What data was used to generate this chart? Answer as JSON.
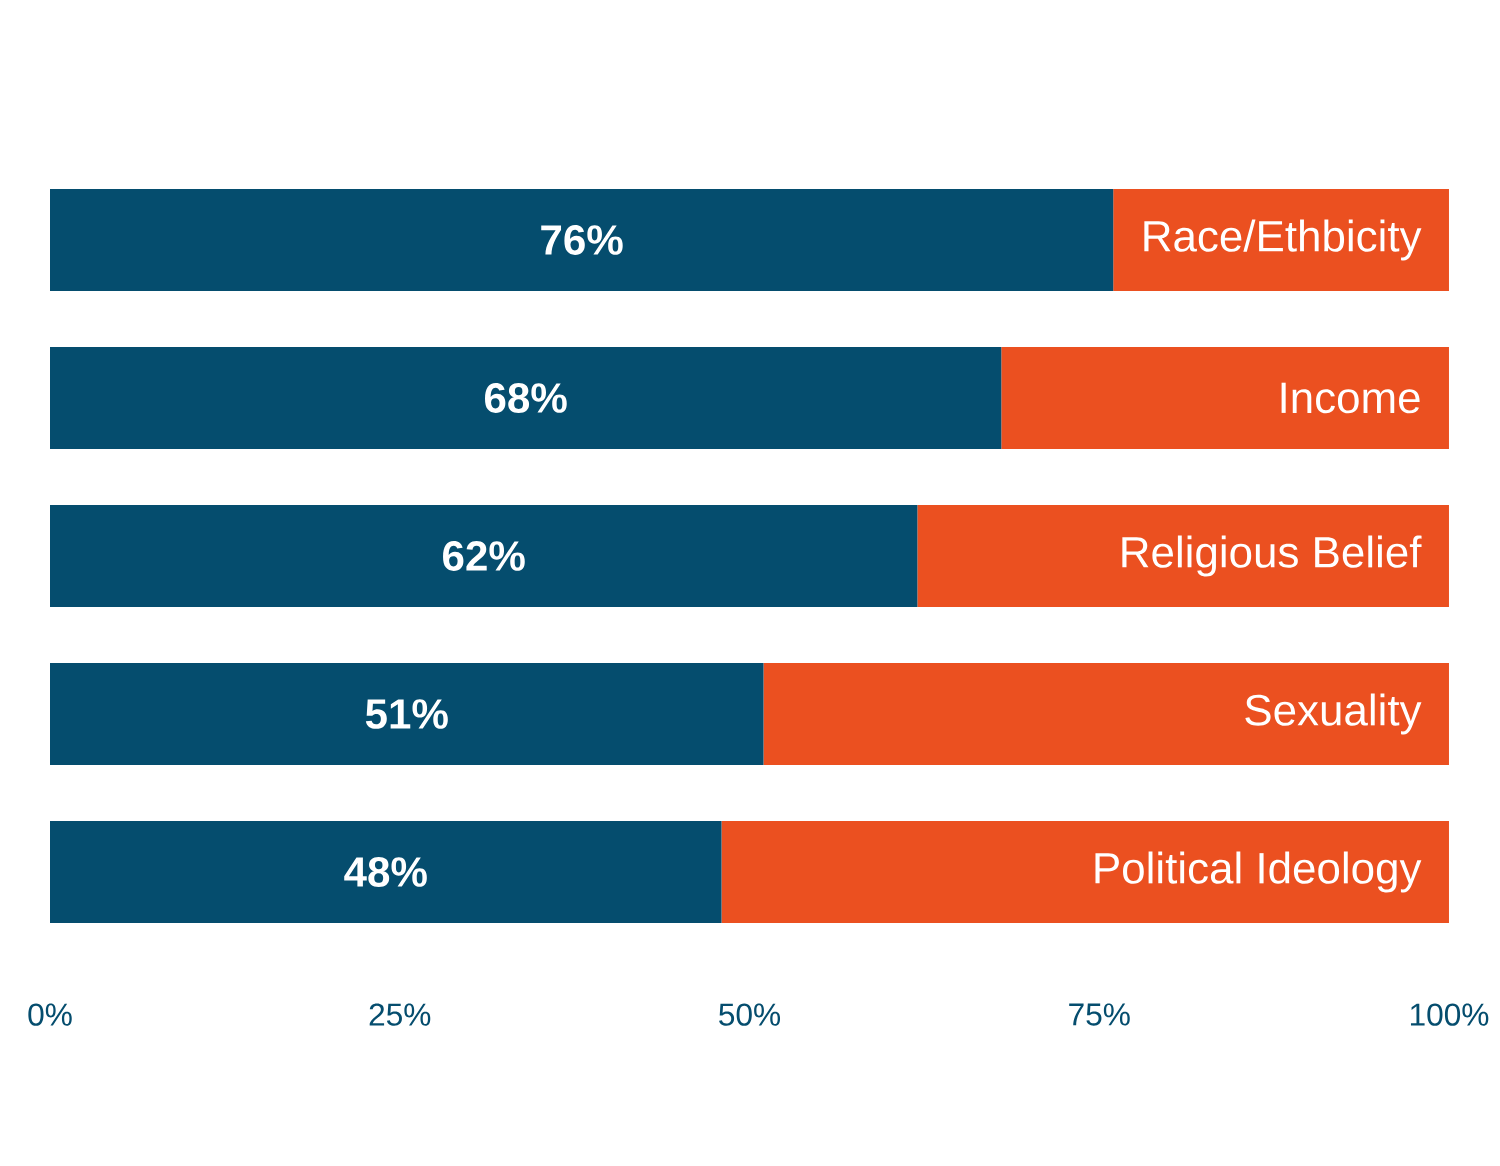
{
  "chart_data": {
    "type": "bar",
    "orientation": "horizontal",
    "stacked": true,
    "categories": [
      "Race/Ethbicity",
      "Income",
      "Religious Belief",
      "Sexuality",
      "Political Ideology"
    ],
    "series": [
      {
        "color": "#054d6e",
        "values": [
          76,
          68,
          62,
          51,
          48
        ],
        "value_labels": [
          "76%",
          "68%",
          "62%",
          "51%",
          "48%"
        ]
      },
      {
        "color": "#eb5020",
        "values": [
          24,
          32,
          38,
          49,
          52
        ]
      }
    ],
    "xlim": [
      0,
      100
    ],
    "xticks": [
      {
        "value": 0,
        "label": "0%"
      },
      {
        "value": 25,
        "label": "25%"
      },
      {
        "value": 50,
        "label": "50%"
      },
      {
        "value": 75,
        "label": "75%"
      },
      {
        "value": 100,
        "label": "100%"
      }
    ]
  }
}
